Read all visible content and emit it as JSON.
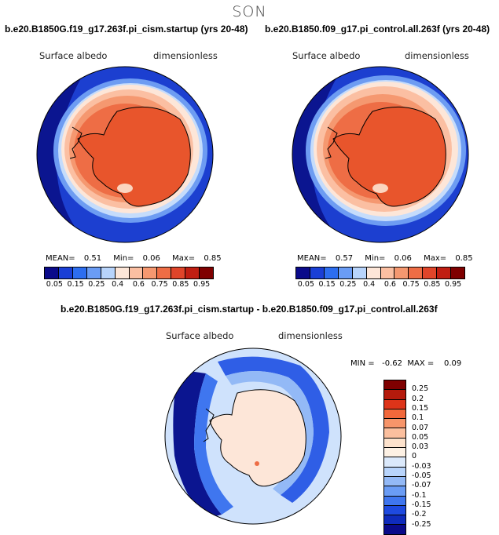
{
  "figure": {
    "season": "SON",
    "variable": "Surface albedo",
    "units": "dimensionless"
  },
  "panel_left": {
    "title": "b.e20.B1850G.f19_g17.263f.pi_cism.startup (yrs 20-48)",
    "mean_label": "MEAN=",
    "mean": "0.51",
    "min_label": "Min=",
    "min": "0.06",
    "max_label": "Max=",
    "max": "0.85"
  },
  "panel_right": {
    "title": "b.e20.B1850.f09_g17.pi_control.all.263f (yrs 20-48)",
    "mean_label": "MEAN=",
    "mean": "0.57",
    "min_label": "Min=",
    "min": "0.06",
    "max_label": "Max=",
    "max": "0.85"
  },
  "panel_diff": {
    "title": "b.e20.B1850G.f19_g17.263f.pi_cism.startup - b.e20.B1850.f09_g17.pi_control.all.263f",
    "stats": "MIN =   -0.62  MAX =    0.09"
  },
  "colorbar_top": {
    "colors": [
      "#0a0a8a",
      "#1a3fd6",
      "#2d6ef0",
      "#6a9cf5",
      "#b8d4fb",
      "#fde6d8",
      "#fbbfa2",
      "#f59870",
      "#ee6d45",
      "#e0452a",
      "#c01e12",
      "#7f0000"
    ],
    "ticks": [
      "0.05",
      "0.15",
      "0.25",
      "0.4",
      "0.6",
      "0.75",
      "0.85",
      "0.95"
    ]
  },
  "colorbar_diff": {
    "colors": [
      "#7f0000",
      "#b51a0c",
      "#dd3419",
      "#f2683b",
      "#f7956a",
      "#fbbf9e",
      "#fde2cc",
      "#fdf1e4",
      "#dbe9fb",
      "#b8d4fb",
      "#93b9f6",
      "#6a9cf5",
      "#3f76ef",
      "#1e4ae0",
      "#0f2bbc",
      "#0a0a8a"
    ],
    "ticks": [
      "0.25",
      "0.2",
      "0.15",
      "0.1",
      "0.07",
      "0.05",
      "0.03",
      "0",
      "-0.03",
      "-0.05",
      "-0.07",
      "-0.1",
      "-0.15",
      "-0.2",
      "-0.25"
    ]
  }
}
